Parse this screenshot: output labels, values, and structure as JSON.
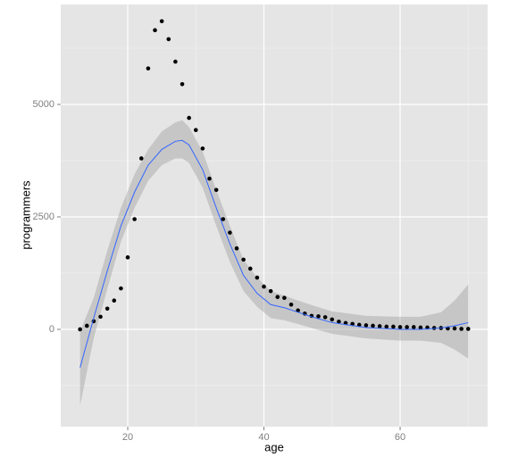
{
  "chart_data": {
    "type": "scatter",
    "x_label": "age",
    "y_label": "programmers",
    "xlim": [
      10.16,
      72.85
    ],
    "ylim": [
      -2163,
      7222
    ],
    "xticks": [
      20,
      40,
      60
    ],
    "yticks": [
      0,
      2500,
      5000
    ],
    "xminor": [
      10,
      30,
      50,
      70
    ],
    "yminor": [
      -1250,
      1250,
      3750,
      6250
    ],
    "grid": true,
    "points": {
      "color": "#000000",
      "x": [
        13,
        14,
        15,
        16,
        17,
        18,
        19,
        20,
        21,
        22,
        23,
        24,
        25,
        26,
        27,
        28,
        29,
        30,
        31,
        32,
        33,
        34,
        35,
        36,
        37,
        38,
        39,
        40,
        41,
        42,
        43,
        44,
        45,
        46,
        47,
        48,
        49,
        50,
        51,
        52,
        53,
        54,
        55,
        56,
        57,
        58,
        59,
        60,
        61,
        62,
        63,
        64,
        65,
        66,
        67,
        68,
        69,
        70
      ],
      "values": [
        0,
        80,
        180,
        280,
        460,
        640,
        910,
        1600,
        2450,
        3800,
        5800,
        6650,
        6850,
        6450,
        5950,
        5450,
        4700,
        4430,
        4020,
        3350,
        3100,
        2450,
        2150,
        1800,
        1550,
        1350,
        1150,
        950,
        850,
        720,
        700,
        550,
        420,
        350,
        300,
        290,
        270,
        220,
        170,
        140,
        120,
        100,
        90,
        80,
        70,
        60,
        60,
        50,
        50,
        50,
        40,
        40,
        30,
        30,
        20,
        20,
        10,
        10
      ]
    },
    "smooth": {
      "color": "#3366ff",
      "band_color": "#999999",
      "x": [
        13,
        15,
        17,
        19,
        21,
        23,
        25,
        27,
        28,
        29,
        31,
        33,
        35,
        37,
        39,
        41,
        43,
        45,
        47,
        50,
        55,
        60,
        63,
        66,
        68,
        70
      ],
      "values": [
        -850,
        250,
        1300,
        2300,
        3050,
        3650,
        4000,
        4180,
        4200,
        4100,
        3550,
        2700,
        1900,
        1200,
        800,
        550,
        480,
        380,
        280,
        150,
        40,
        0,
        0,
        30,
        80,
        150
      ],
      "lower": [
        -1700,
        -200,
        900,
        1950,
        2700,
        3300,
        3650,
        3800,
        3800,
        3700,
        3150,
        2300,
        1500,
        850,
        500,
        250,
        200,
        120,
        30,
        -100,
        -200,
        -250,
        -250,
        -300,
        -450,
        -650
      ],
      "upper": [
        -50,
        700,
        1750,
        2700,
        3450,
        4000,
        4400,
        4600,
        4650,
        4500,
        3950,
        3100,
        2300,
        1550,
        1150,
        850,
        750,
        640,
        540,
        400,
        300,
        280,
        280,
        380,
        640,
        1000
      ]
    }
  }
}
